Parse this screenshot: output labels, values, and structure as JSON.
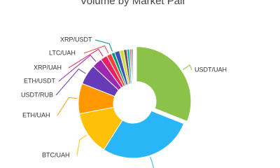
{
  "chart_data": {
    "type": "donut",
    "title": "Volume by Market Pair",
    "categories": [
      "USDT/UAH",
      null,
      "BTC/UAH",
      "ETH/UAH",
      "USDT/RUB",
      "ETH/USDT",
      "XRP/UAH",
      "LTC/UAH",
      "XRP/USDT",
      null,
      null,
      null,
      null,
      null,
      null
    ],
    "values": [
      31,
      28,
      13,
      9,
      6,
      3,
      2,
      1.5,
      1,
      1.5,
      1.2,
      1,
      0.8,
      0.5,
      0.5
    ],
    "colors": [
      "#8bc34a",
      "#29b6f6",
      "#ffc107",
      "#ff9800",
      "#673ab7",
      "#9c27b0",
      "#e91e63",
      "#f44336",
      "#009688",
      "#3f51b5",
      "#cddc39",
      "#795548",
      "#00bcd4",
      "#ff5722",
      "#607d8b"
    ]
  }
}
